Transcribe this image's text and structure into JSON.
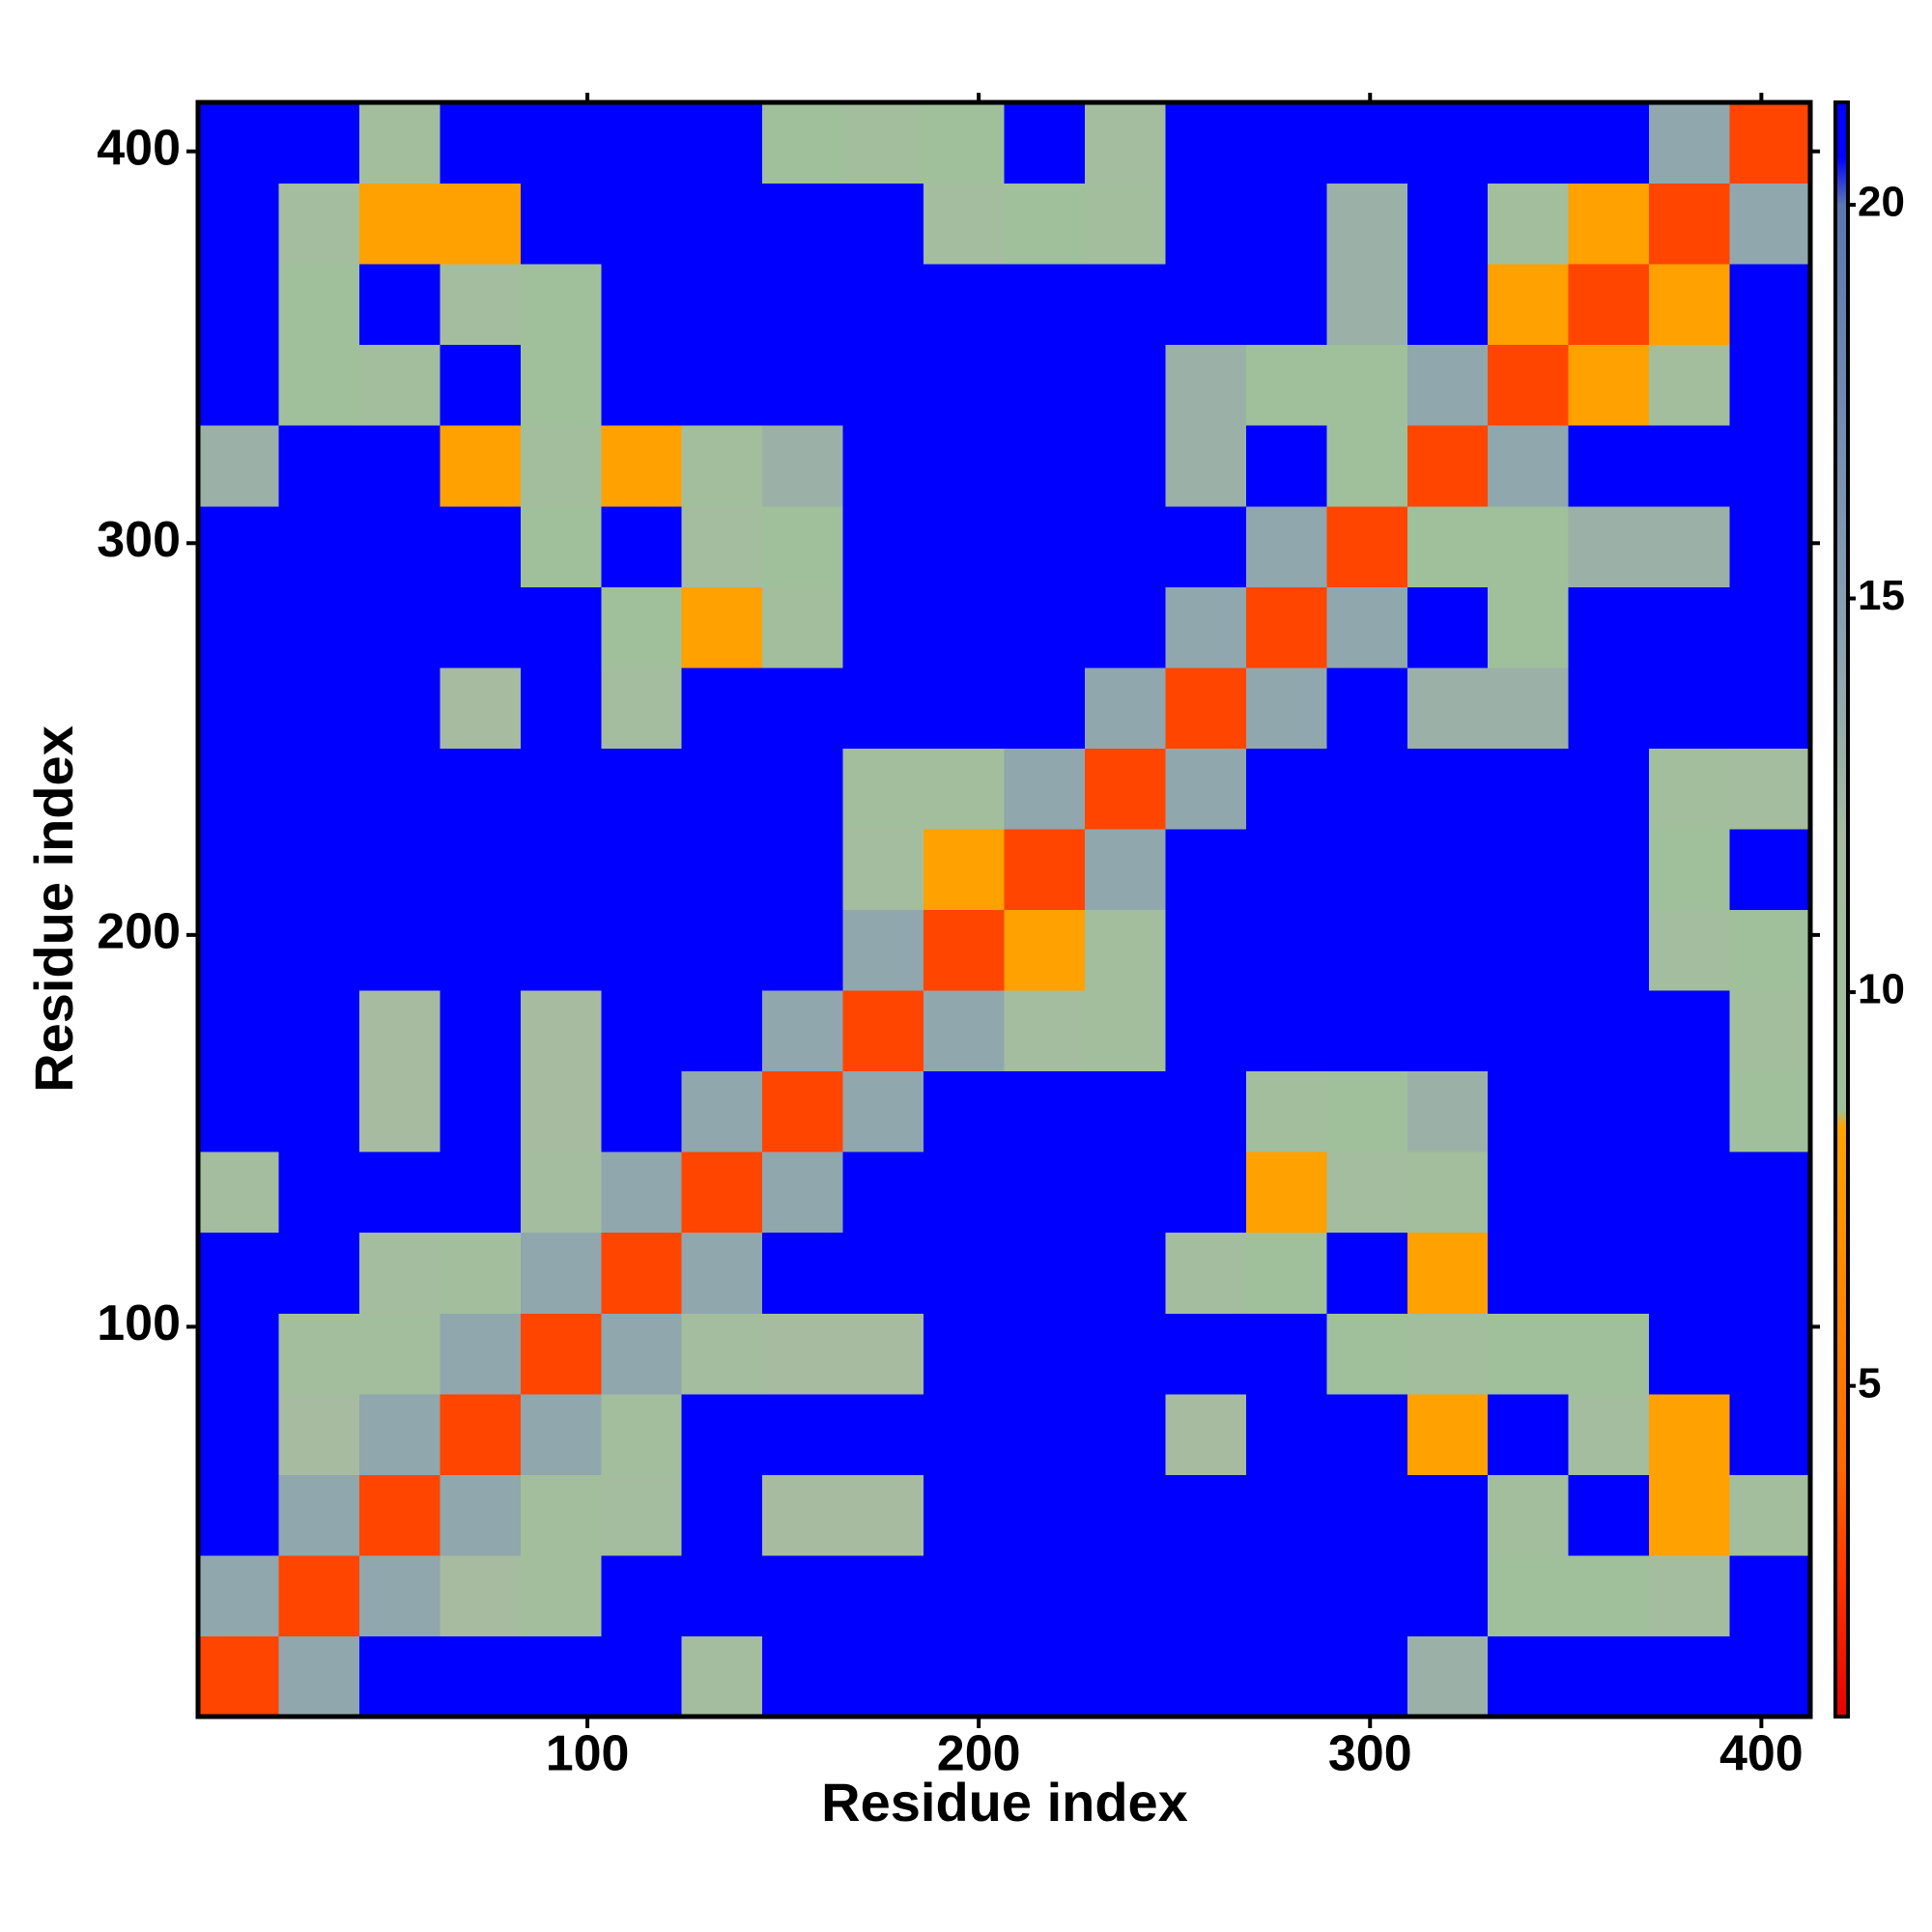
{
  "chart_data": {
    "type": "heatmap",
    "x_label": "Residue index",
    "y_label": "Residue index",
    "xlim": [
      0.5,
      412.5
    ],
    "ylim": [
      0.5,
      412.5
    ],
    "xticks": [
      100,
      200,
      300,
      400
    ],
    "yticks": [
      100,
      200,
      300,
      400
    ],
    "xbins": [
      0.5,
      21.1,
      41.7,
      62.3,
      82.9,
      103.5,
      124.1,
      144.7,
      165.3,
      185.9,
      206.5,
      227.1,
      247.7,
      268.3,
      288.9,
      309.5,
      330.1,
      350.7,
      371.3,
      391.9,
      412.5
    ],
    "ybins": [
      0.5,
      21.1,
      41.7,
      62.3,
      82.9,
      103.5,
      124.1,
      144.7,
      165.3,
      185.9,
      206.5,
      227.1,
      247.7,
      268.3,
      288.9,
      309.5,
      330.1,
      350.7,
      371.3,
      391.9,
      412.5
    ],
    "z": [
      [
        3,
        14,
        21,
        21,
        21,
        21,
        11,
        21,
        21,
        21,
        21,
        21,
        21,
        21,
        21,
        13,
        21,
        21,
        21,
        21
      ],
      [
        14,
        3,
        14,
        12,
        10,
        21,
        21,
        21,
        21,
        21,
        21,
        21,
        21,
        21,
        21,
        21,
        9,
        9,
        11,
        21
      ],
      [
        21,
        14,
        3,
        14,
        10,
        11,
        21,
        12,
        12,
        21,
        21,
        21,
        21,
        21,
        21,
        21,
        10,
        21,
        8,
        10
      ],
      [
        21,
        12,
        14,
        3,
        14,
        10,
        21,
        21,
        21,
        21,
        21,
        21,
        12,
        21,
        21,
        8,
        21,
        11,
        8,
        21
      ],
      [
        21,
        10,
        10,
        14,
        3,
        14,
        11,
        12,
        12,
        21,
        21,
        21,
        21,
        21,
        9,
        10,
        9,
        9,
        21,
        21
      ],
      [
        21,
        21,
        11,
        10,
        14,
        3,
        14,
        21,
        21,
        21,
        21,
        21,
        11,
        9,
        21,
        8,
        21,
        21,
        21,
        21
      ],
      [
        11,
        21,
        21,
        21,
        11,
        14,
        3,
        14,
        21,
        21,
        21,
        21,
        21,
        8,
        11,
        10,
        21,
        21,
        21,
        21
      ],
      [
        21,
        21,
        12,
        21,
        12,
        21,
        14,
        3,
        14,
        21,
        21,
        21,
        21,
        10,
        9,
        13,
        21,
        21,
        21,
        9
      ],
      [
        21,
        21,
        12,
        21,
        12,
        21,
        21,
        14,
        3,
        14,
        11,
        10,
        21,
        21,
        21,
        21,
        21,
        21,
        21,
        10
      ],
      [
        21,
        21,
        21,
        21,
        21,
        21,
        21,
        21,
        14,
        3,
        8,
        10,
        21,
        21,
        21,
        21,
        21,
        21,
        11,
        9
      ],
      [
        21,
        21,
        21,
        21,
        21,
        21,
        21,
        21,
        11,
        8,
        3,
        14,
        21,
        21,
        21,
        21,
        21,
        21,
        9,
        21
      ],
      [
        21,
        21,
        21,
        21,
        21,
        21,
        21,
        21,
        10,
        10,
        14,
        3,
        14,
        21,
        21,
        21,
        21,
        21,
        10,
        11
      ],
      [
        21,
        21,
        21,
        12,
        21,
        11,
        21,
        21,
        21,
        21,
        21,
        14,
        3,
        14,
        21,
        13,
        13,
        21,
        21,
        21
      ],
      [
        21,
        21,
        21,
        21,
        21,
        9,
        8,
        10,
        21,
        21,
        21,
        21,
        14,
        3,
        14,
        21,
        9,
        21,
        21,
        21
      ],
      [
        21,
        21,
        21,
        21,
        9,
        21,
        11,
        9,
        21,
        21,
        21,
        21,
        21,
        14,
        3,
        9,
        9,
        13,
        13,
        21
      ],
      [
        13,
        21,
        21,
        8,
        10,
        8,
        10,
        13,
        21,
        21,
        21,
        21,
        13,
        21,
        9,
        3,
        14,
        21,
        21,
        21
      ],
      [
        21,
        9,
        10,
        21,
        9,
        21,
        21,
        21,
        21,
        21,
        21,
        21,
        13,
        9,
        9,
        14,
        3,
        8,
        10,
        21
      ],
      [
        21,
        9,
        21,
        11,
        9,
        21,
        21,
        21,
        21,
        21,
        21,
        21,
        21,
        21,
        13,
        21,
        8,
        3,
        8,
        21
      ],
      [
        21,
        11,
        8,
        8,
        21,
        21,
        21,
        21,
        21,
        11,
        9,
        10,
        21,
        21,
        13,
        21,
        10,
        8,
        3,
        14
      ],
      [
        21,
        21,
        10,
        21,
        21,
        21,
        21,
        9,
        10,
        9,
        21,
        11,
        21,
        21,
        21,
        21,
        21,
        21,
        14,
        3
      ]
    ],
    "zlim": [
      0.8,
      21.3
    ],
    "zticks": [
      5,
      10,
      15,
      20
    ],
    "colorscale": [
      [
        0.8,
        "#e60000"
      ],
      [
        2.5,
        "#ff3300"
      ],
      [
        4,
        "#ff6a00"
      ],
      [
        8.3,
        "#ffa500"
      ],
      [
        8.5,
        "#9ec19a"
      ],
      [
        12,
        "#a7bba0"
      ],
      [
        14.5,
        "#8aa2b2"
      ],
      [
        20,
        "#5a78b0"
      ],
      [
        20.6,
        "#0000ff"
      ],
      [
        21.3,
        "#0000ff"
      ]
    ]
  }
}
